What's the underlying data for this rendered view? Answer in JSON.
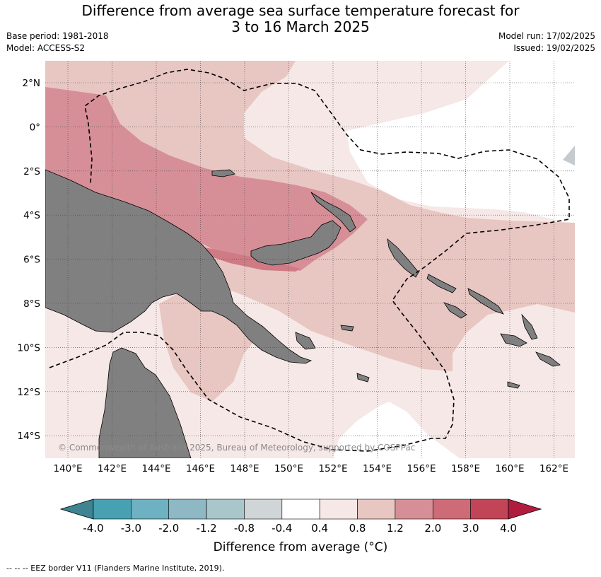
{
  "title": {
    "line1": "Difference from average sea surface temperature forecast for",
    "line2": "3 to 16 March 2025"
  },
  "meta_left": {
    "base_period": "Base period: 1981-2018",
    "model": "Model: ACCESS-S2"
  },
  "meta_right": {
    "model_run": "Model run: 17/02/2025",
    "issued": "Issued: 19/02/2025"
  },
  "map": {
    "lon_labels": [
      "140°E",
      "142°E",
      "144°E",
      "146°E",
      "148°E",
      "150°E",
      "152°E",
      "154°E",
      "156°E",
      "158°E",
      "160°E",
      "162°E"
    ],
    "lat_labels": [
      "2°N",
      "0°",
      "2°S",
      "4°S",
      "6°S",
      "8°S",
      "10°S",
      "12°S",
      "14°S"
    ],
    "copyright": "© Commonwealth of Australia 2025, Bureau of Meteorology, supported by COSPPac",
    "land_color": "#808080",
    "anomaly_colors": {
      "light": "#f5e8e6",
      "mid": "#e8c6c2",
      "warm": "#d68f97",
      "warmer": "#cf7a85"
    }
  },
  "colorbar": {
    "tick_labels": [
      "-4.0",
      "-3.0",
      "-2.0",
      "-1.2",
      "-0.8",
      "-0.4",
      "0.4",
      "0.8",
      "1.2",
      "2.0",
      "3.0",
      "4.0"
    ],
    "colors": [
      "#3e8491",
      "#48a0b3",
      "#6eb1c2",
      "#8db8c4",
      "#a9c6cb",
      "#d0d6d8",
      "#ffffff",
      "#f5e8e6",
      "#e8c6c2",
      "#d68f97",
      "#cd6b76",
      "#c14557",
      "#b01c3e"
    ],
    "title": "Difference from average (°C)"
  },
  "footnote": "-- -- -- EEZ border V11 (Flanders Marine Institute, 2019)."
}
